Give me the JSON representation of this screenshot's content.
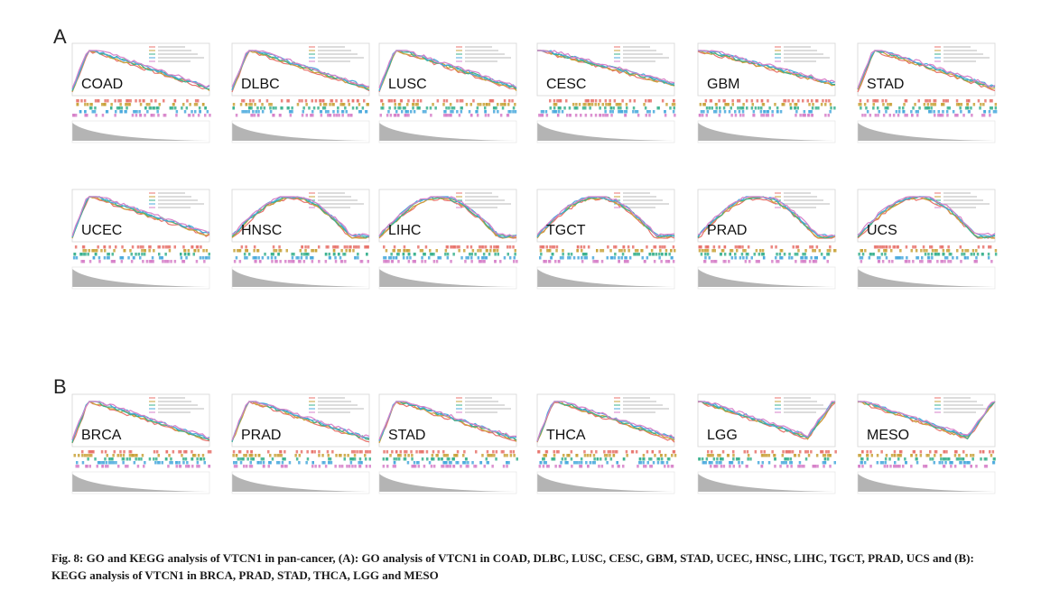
{
  "figure": {
    "panel_a": {
      "letter": "A",
      "rows": [
        [
          "COAD",
          "DLBC",
          "LUSC",
          "CESC",
          "GBM",
          "STAD"
        ],
        [
          "UCEC",
          "HNSC",
          "LIHC",
          "TGCT",
          "PRAD",
          "UCS"
        ]
      ]
    },
    "panel_b": {
      "letter": "B",
      "rows": [
        [
          "BRCA",
          "PRAD",
          "STAD",
          "THCA",
          "LGG",
          "MESO"
        ]
      ]
    },
    "series_colors": [
      "#e8736c",
      "#c9a23a",
      "#39b18e",
      "#49a9dd",
      "#d680c9"
    ]
  },
  "caption": "Fig. 8: GO and KEGG analysis of VTCN1 in pan-cancer, (A): GO analysis of VTCN1 in COAD, DLBC, LUSC, CESC, GBM, STAD, UCEC, HNSC, LIHC, TGCT, PRAD, UCS and (B): KEGG analysis of VTCN1 in BRCA, PRAD, STAD, THCA, LGG and MESO"
}
